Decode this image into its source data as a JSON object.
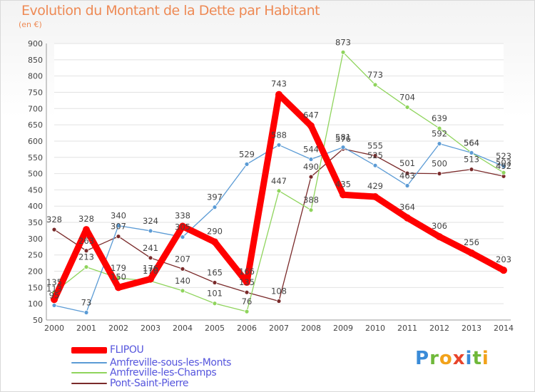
{
  "title": "Evolution du Montant de la Dette par Habitant",
  "subtitle": "(en €)",
  "brand": {
    "letters": [
      {
        "ch": "P",
        "color": "#3a8bd8"
      },
      {
        "ch": "r",
        "color": "#6fb83a"
      },
      {
        "ch": "o",
        "color": "#f2a21a"
      },
      {
        "ch": "x",
        "color": "#e8442b"
      },
      {
        "ch": "i",
        "color": "#3a8bd8"
      },
      {
        "ch": "t",
        "color": "#6fb83a"
      },
      {
        "ch": "i",
        "color": "#f2a21a"
      }
    ]
  },
  "chart_data": {
    "type": "line",
    "x": [
      "2000",
      "2001",
      "2002",
      "2003",
      "2004",
      "2005",
      "2006",
      "2007",
      "2008",
      "2009",
      "2010",
      "2011",
      "2012",
      "2013",
      "2014"
    ],
    "ylim": [
      50,
      900
    ],
    "yticks": [
      50,
      100,
      150,
      200,
      250,
      300,
      350,
      400,
      450,
      500,
      550,
      600,
      650,
      700,
      750,
      800,
      850,
      900
    ],
    "grid": "horizontal",
    "legend_position": "bottom-left",
    "series": [
      {
        "name": "FLIPOU",
        "color": "#ff0000",
        "values": [
          113,
          328,
          150,
          176,
          338,
          290,
          166,
          743,
          647,
          435,
          429,
          364,
          306,
          256,
          203
        ],
        "labels": [
          "113",
          "328",
          "150",
          "176",
          "338",
          "290",
          "166",
          "743",
          "647",
          "435",
          "429",
          "364",
          "306",
          "256",
          "203"
        ]
      },
      {
        "name": "Amfreville-sous-les-Monts",
        "color": "#5b9bd5",
        "values": [
          95,
          73,
          340,
          324,
          305,
          397,
          529,
          588,
          544,
          581,
          525,
          463,
          592,
          564,
          523
        ],
        "labels": [
          "95",
          "73",
          "340",
          "324",
          "305",
          "397",
          "529",
          "588",
          "544",
          "581",
          "525",
          "463",
          "592",
          "564",
          "523"
        ]
      },
      {
        "name": "Amfreville-les-Champs",
        "color": "#8fd45c",
        "values": [
          135,
          213,
          179,
          170,
          140,
          101,
          76,
          447,
          388,
          873,
          773,
          704,
          639,
          564,
          503
        ],
        "labels": [
          "135",
          "213",
          "179",
          "170",
          "140",
          "101",
          "76",
          "447",
          "388",
          "873",
          "773",
          "704",
          "639",
          "564",
          "503"
        ]
      },
      {
        "name": "Pont-Saint-Pierre",
        "color": "#7a2a2a",
        "values": [
          328,
          263,
          307,
          241,
          207,
          165,
          135,
          108,
          490,
          576,
          555,
          501,
          500,
          513,
          492
        ],
        "labels": [
          "328",
          "263",
          "307",
          "241",
          "207",
          "165",
          "135",
          "108",
          "490",
          "576",
          "555",
          "501",
          "500",
          "513",
          "492"
        ]
      }
    ]
  }
}
